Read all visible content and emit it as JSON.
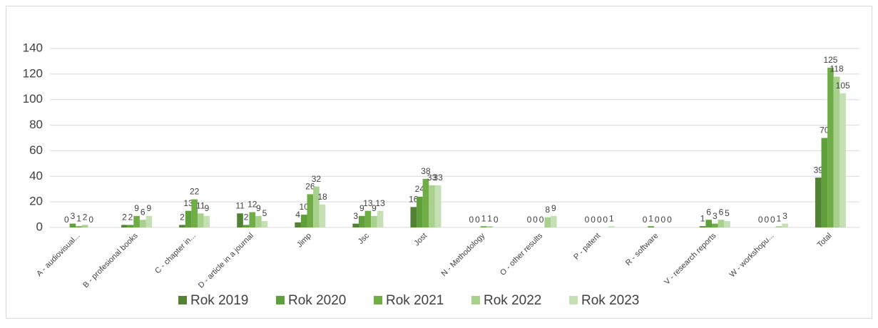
{
  "chart_data": {
    "type": "bar",
    "categories": [
      "A - audiovisual...",
      "B - profesional books",
      "C - chapter in...",
      "D - article in a journal",
      "Jimp",
      "Jsc",
      "Jost",
      "N - Methodology",
      "O - other results",
      "P - patent",
      "R - software",
      "V - research reports",
      "W - workshopu...",
      "Total"
    ],
    "series": [
      {
        "name": "Rok 2019",
        "color": "#548235",
        "values": [
          0,
          2,
          2,
          11,
          4,
          3,
          16,
          0,
          0,
          0,
          0,
          1,
          0,
          39
        ]
      },
      {
        "name": "Rok 2020",
        "color": "#5fa03a",
        "values": [
          3,
          2,
          13,
          2,
          10,
          9,
          24,
          0,
          0,
          0,
          1,
          6,
          0,
          70
        ]
      },
      {
        "name": "Rok 2021",
        "color": "#70ad47",
        "values": [
          1,
          9,
          22,
          12,
          26,
          13,
          38,
          1,
          0,
          0,
          0,
          3,
          0,
          125
        ]
      },
      {
        "name": "Rok 2022",
        "color": "#a9d18e",
        "values": [
          2,
          6,
          11,
          9,
          32,
          9,
          33,
          1,
          8,
          0,
          0,
          6,
          1,
          118
        ]
      },
      {
        "name": "Rok 2023",
        "color": "#c5e0b4",
        "values": [
          0,
          9,
          9,
          5,
          18,
          13,
          33,
          0,
          9,
          1,
          0,
          5,
          3,
          105
        ]
      }
    ],
    "ylim": [
      0,
      140
    ],
    "yticks": [
      0,
      20,
      40,
      60,
      80,
      100,
      120,
      140
    ],
    "grid": true,
    "legend": "bottom"
  }
}
